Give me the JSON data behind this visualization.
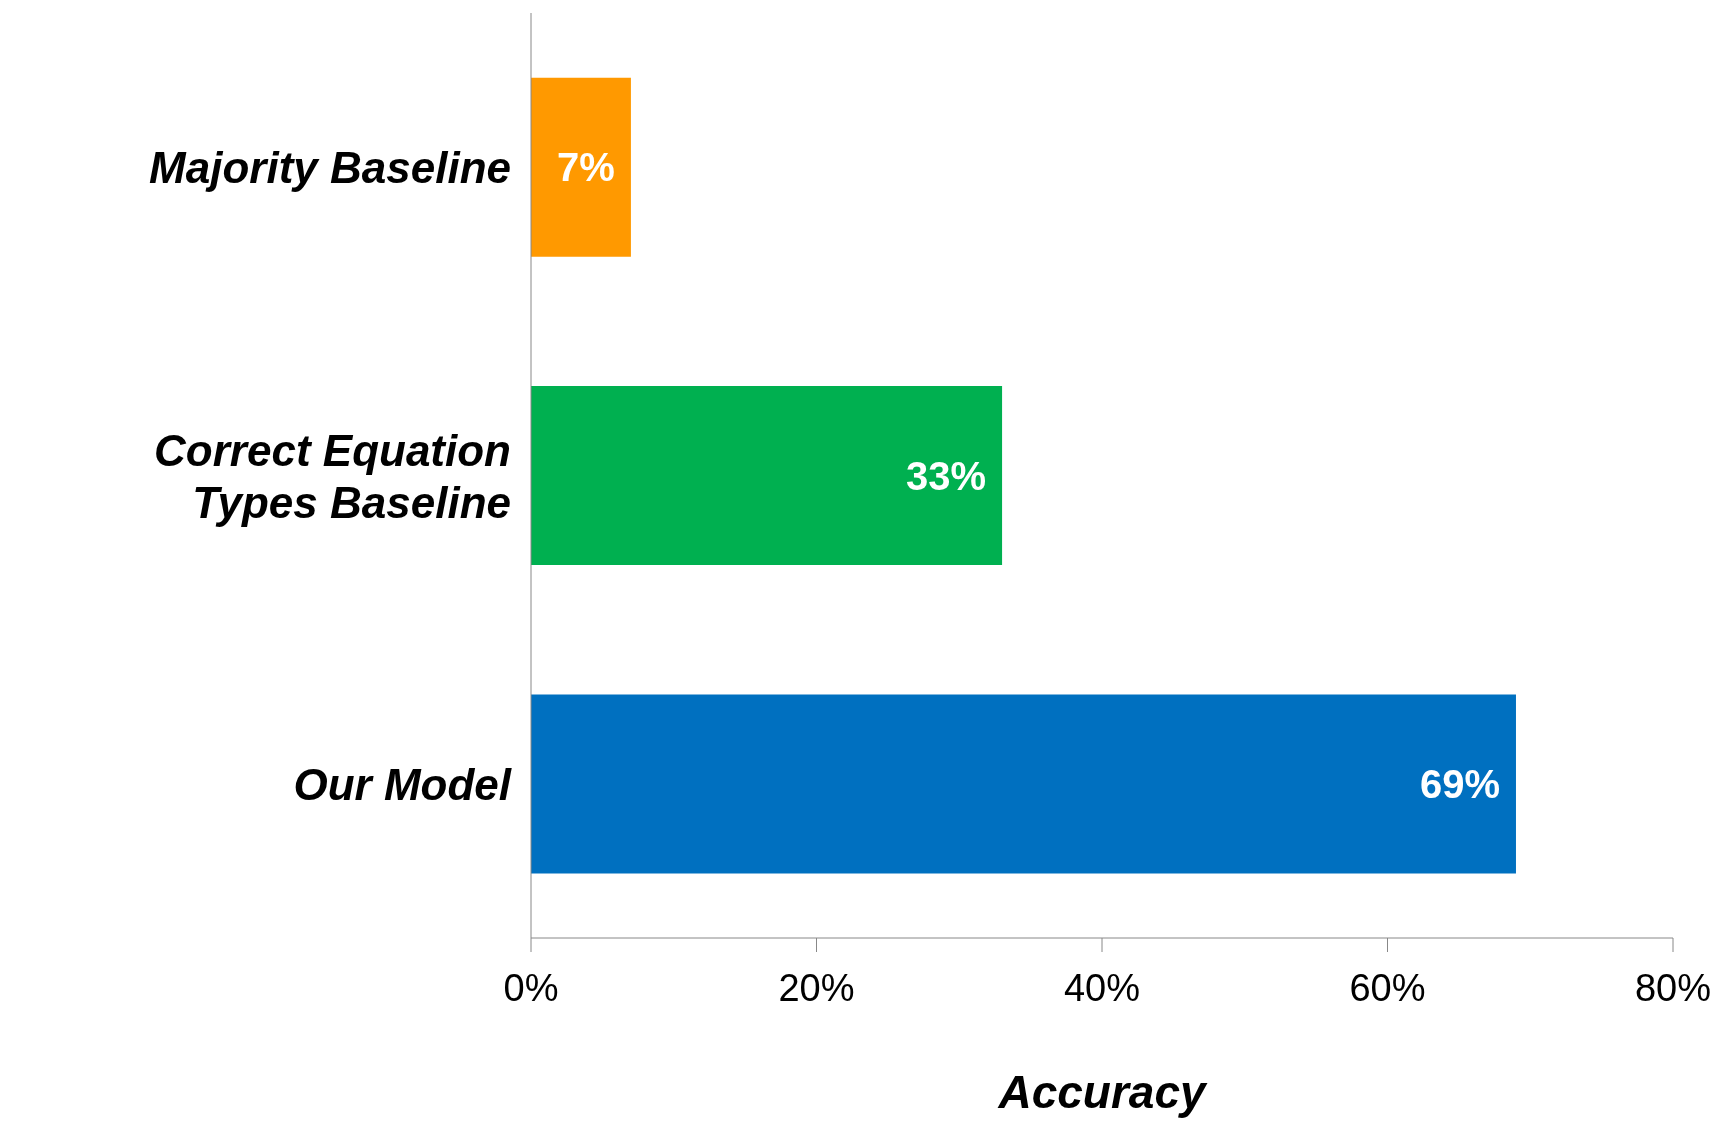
{
  "chart_data": {
    "type": "bar",
    "orientation": "horizontal",
    "xlabel": "Accuracy",
    "categories": [
      "Majority Baseline",
      "Correct Equation Types Baseline",
      "Our Model"
    ],
    "values": [
      7,
      33,
      69
    ],
    "colors": [
      "#ff9900",
      "#00b050",
      "#0070c0"
    ],
    "value_labels": [
      "7%",
      "33%",
      "69%"
    ],
    "xlim": [
      0,
      80
    ],
    "xticks": [
      {
        "value": 0,
        "label": "0%"
      },
      {
        "value": 20,
        "label": "20%"
      },
      {
        "value": 40,
        "label": "40%"
      },
      {
        "value": 60,
        "label": "60%"
      },
      {
        "value": 80,
        "label": "80%"
      }
    ]
  }
}
